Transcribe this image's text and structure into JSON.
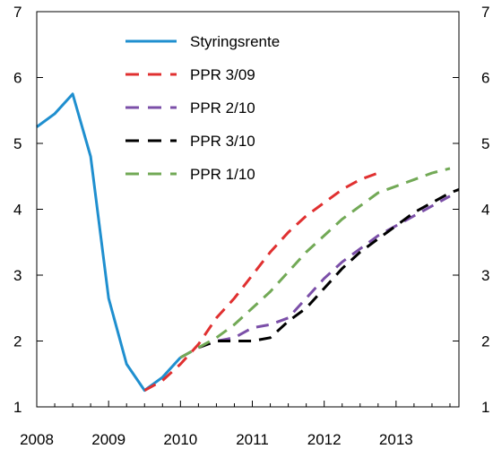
{
  "chart_data": {
    "type": "line",
    "title": "",
    "xlabel": "",
    "ylabel": "",
    "xlim": [
      2008,
      2013.875
    ],
    "ylim": [
      1,
      7
    ],
    "x_ticks": [
      2008,
      2009,
      2010,
      2011,
      2012,
      2013
    ],
    "x_tick_labels": [
      "2008",
      "2009",
      "2010",
      "2011",
      "2012",
      "2013"
    ],
    "y_ticks": [
      1,
      2,
      3,
      4,
      5,
      6,
      7
    ],
    "y_tick_labels": [
      "1",
      "2",
      "3",
      "4",
      "5",
      "6",
      "7"
    ],
    "grid": false,
    "legend_position": "top-left",
    "series": [
      {
        "name": "Styringsrente",
        "color": "#1f8fcf",
        "style": "solid",
        "points": [
          [
            2008.0,
            5.25
          ],
          [
            2008.25,
            5.45
          ],
          [
            2008.5,
            5.75
          ],
          [
            2008.75,
            4.8
          ],
          [
            2009.0,
            2.65
          ],
          [
            2009.25,
            1.65
          ],
          [
            2009.5,
            1.25
          ],
          [
            2009.75,
            1.45
          ],
          [
            2010.0,
            1.75
          ]
        ]
      },
      {
        "name": "PPR 3/09",
        "color": "#e03030",
        "style": "dashed",
        "points": [
          [
            2009.5,
            1.25
          ],
          [
            2009.75,
            1.4
          ],
          [
            2010.0,
            1.65
          ],
          [
            2010.25,
            1.95
          ],
          [
            2010.5,
            2.35
          ],
          [
            2010.75,
            2.65
          ],
          [
            2011.0,
            3.0
          ],
          [
            2011.25,
            3.35
          ],
          [
            2011.5,
            3.65
          ],
          [
            2011.75,
            3.9
          ],
          [
            2012.0,
            4.1
          ],
          [
            2012.25,
            4.3
          ],
          [
            2012.5,
            4.45
          ],
          [
            2012.75,
            4.55
          ]
        ]
      },
      {
        "name": "PPR 2/10",
        "color": "#7b4fa8",
        "style": "dashed",
        "points": [
          [
            2010.0,
            1.75
          ],
          [
            2010.25,
            1.9
          ],
          [
            2010.5,
            2.0
          ],
          [
            2010.75,
            2.05
          ],
          [
            2011.0,
            2.2
          ],
          [
            2011.25,
            2.25
          ],
          [
            2011.5,
            2.35
          ],
          [
            2011.75,
            2.65
          ],
          [
            2012.0,
            2.95
          ],
          [
            2012.25,
            3.2
          ],
          [
            2012.5,
            3.4
          ],
          [
            2012.75,
            3.6
          ],
          [
            2013.0,
            3.75
          ],
          [
            2013.25,
            3.9
          ],
          [
            2013.5,
            4.05
          ],
          [
            2013.75,
            4.2
          ]
        ]
      },
      {
        "name": "PPR 3/10",
        "color": "#000000",
        "style": "dashed",
        "points": [
          [
            2010.25,
            1.9
          ],
          [
            2010.5,
            2.0
          ],
          [
            2010.75,
            2.0
          ],
          [
            2011.0,
            2.0
          ],
          [
            2011.25,
            2.05
          ],
          [
            2011.5,
            2.3
          ],
          [
            2011.75,
            2.5
          ],
          [
            2012.0,
            2.8
          ],
          [
            2012.25,
            3.1
          ],
          [
            2012.5,
            3.35
          ],
          [
            2012.75,
            3.55
          ],
          [
            2013.0,
            3.75
          ],
          [
            2013.25,
            3.95
          ],
          [
            2013.5,
            4.1
          ],
          [
            2013.75,
            4.25
          ],
          [
            2013.875,
            4.3
          ]
        ]
      },
      {
        "name": "PPR 1/10",
        "color": "#72a956",
        "style": "dashed",
        "points": [
          [
            2010.0,
            1.75
          ],
          [
            2010.25,
            1.9
          ],
          [
            2010.5,
            2.05
          ],
          [
            2010.75,
            2.25
          ],
          [
            2011.0,
            2.5
          ],
          [
            2011.25,
            2.75
          ],
          [
            2011.5,
            3.05
          ],
          [
            2011.75,
            3.35
          ],
          [
            2012.0,
            3.6
          ],
          [
            2012.25,
            3.85
          ],
          [
            2012.5,
            4.05
          ],
          [
            2012.75,
            4.25
          ],
          [
            2013.0,
            4.35
          ],
          [
            2013.25,
            4.45
          ],
          [
            2013.5,
            4.55
          ],
          [
            2013.75,
            4.62
          ]
        ]
      }
    ]
  }
}
